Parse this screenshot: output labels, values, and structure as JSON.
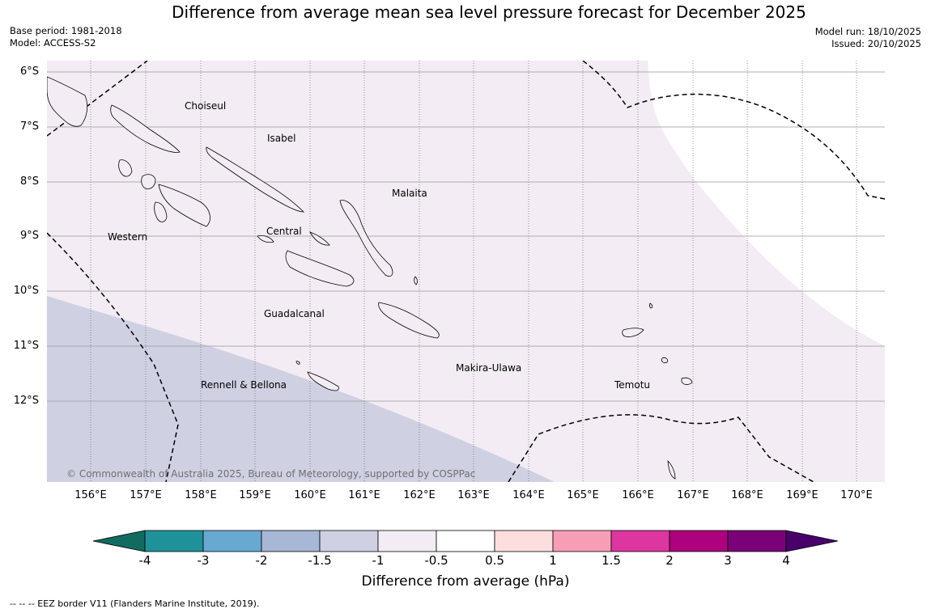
{
  "title": "Difference from average mean sea level pressure forecast for December 2025",
  "base_period": "Base period: 1981-2018",
  "model": "Model: ACCESS-S2",
  "model_run": "Model run: 18/10/2025",
  "issued": "Issued: 20/10/2025",
  "map": {
    "lat_labels": [
      "6°S",
      "7°S",
      "8°S",
      "9°S",
      "10°S",
      "11°S",
      "12°S"
    ],
    "lon_labels": [
      "156°E",
      "157°E",
      "158°E",
      "159°E",
      "160°E",
      "161°E",
      "162°E",
      "163°E",
      "164°E",
      "165°E",
      "166°E",
      "167°E",
      "168°E",
      "169°E",
      "170°E"
    ],
    "regions": [
      "Choiseul",
      "Isabel",
      "Malaita",
      "Western",
      "Central",
      "Guadalcanal",
      "Makira-Ulawa",
      "Rennell & Bellona",
      "Temotu"
    ],
    "copyright": "© Commonwealth of Australia 2025, Bureau of Meteorology, supported by COSPPac",
    "fill_colors": {
      "light_purple": "#f3ecf4",
      "lavender": "#cfd1e3",
      "white": "#ffffff"
    }
  },
  "colorbar": {
    "label": "Difference from average (hPa)",
    "ticks": [
      "-4",
      "-3",
      "-2",
      "-1.5",
      "-1",
      "-0.5",
      "0.5",
      "1",
      "1.5",
      "2",
      "3",
      "4"
    ],
    "colors": [
      "#116b61",
      "#1f9198",
      "#68a9d1",
      "#a7b8d6",
      "#cfd1e3",
      "#f3ecf4",
      "#ffffff",
      "#fddedf",
      "#f79eb7",
      "#dd36a0",
      "#ad017e",
      "#7a0177",
      "#4a006a"
    ]
  },
  "footnote": "--  --  -- EEZ border V11 (Flanders Marine Institute, 2019)."
}
